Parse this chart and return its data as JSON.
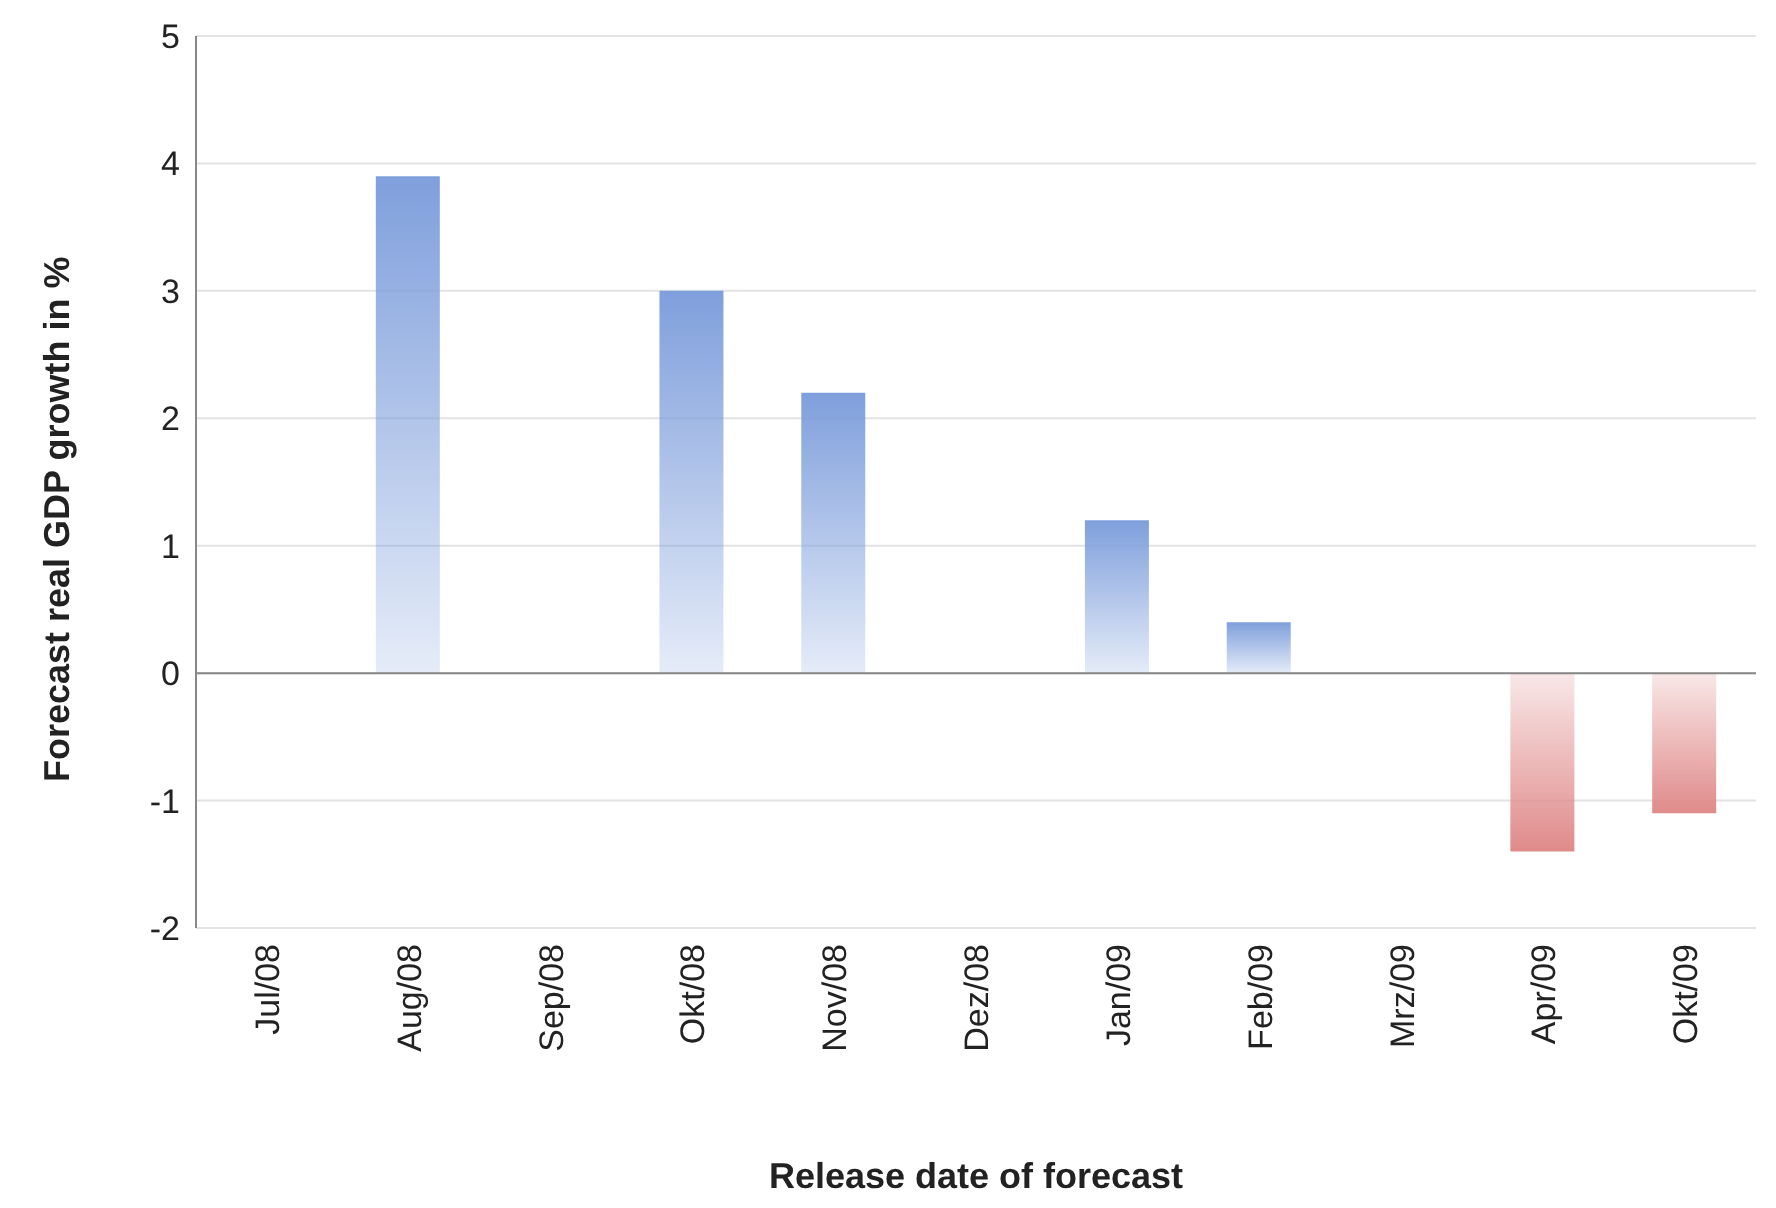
{
  "chart_data": {
    "type": "bar",
    "xlabel": "Release date of forecast",
    "ylabel": "Forecast real GDP growth in %",
    "categories": [
      "Jul/08",
      "Aug/08",
      "Sep/08",
      "Okt/08",
      "Nov/08",
      "Dez/08",
      "Jan/09",
      "Feb/09",
      "Mrz/09",
      "Apr/09",
      "Okt/09"
    ],
    "values": [
      null,
      3.9,
      null,
      3.0,
      2.2,
      null,
      1.2,
      0.4,
      null,
      -1.4,
      -1.1
    ],
    "colors": [
      "#7f9fdc",
      "#7f9fdc",
      "#7f9fdc",
      "#7f9fdc",
      "#7f9fdc",
      "#7f9fdc",
      "#7f9fdc",
      "#7f9fdc",
      "#7f9fdc",
      "#e08a8a",
      "#e08a8a"
    ],
    "ylim": [
      -2,
      5
    ],
    "yticks": [
      -2,
      -1,
      0,
      1,
      2,
      3,
      4,
      5
    ],
    "grid": "y",
    "legend": false
  }
}
